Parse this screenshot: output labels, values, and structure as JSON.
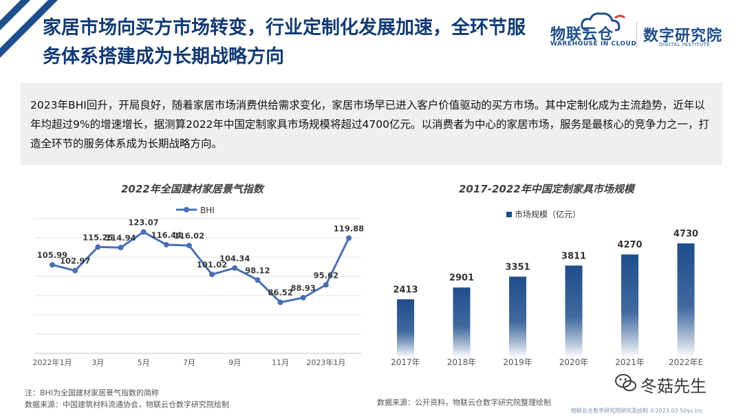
{
  "header": {
    "title_line1": "家居市场向买方市场转变，行业定制化发展加速，全环节服",
    "title_line2": "务体系搭建成为长期战略方向",
    "logo_left": "物联云仓",
    "logo_left_sub": "WAREHOUSE IN CLOUD",
    "logo_right": "数字研究院",
    "logo_right_sub": "DIGITAL INSTITUTE",
    "accent_color": "#1f4e8c"
  },
  "summary": {
    "text": "2023年BHI回升，开局良好，随着家居市场消费供给需求变化，家居市场早已进入客户价值驱动的买方市场。其中定制化成为主流趋势，近年以年均超过9%的增速增长，据测算2022年中国定制家具市场规模将超过4700亿元。以消费者为中心的家居市场，服务是最核心的竞争力之一，打造全环节的服务体系成为长期战略方向。"
  },
  "chart_data": [
    {
      "type": "line",
      "title": "2022年全国建材家居景气指数",
      "series": [
        {
          "name": "BHI",
          "color": "#4a6fb5",
          "values": [
            105.99,
            102.97,
            115.25,
            114.94,
            123.07,
            116.44,
            116.02,
            101.02,
            104.34,
            98.12,
            86.52,
            88.93,
            95.62,
            119.88
          ]
        }
      ],
      "x_tick_labels": [
        "2022年1月",
        "3月",
        "5月",
        "7月",
        "9月",
        "11月",
        "2023年1月"
      ],
      "x_tick_positions": [
        0,
        2,
        4,
        6,
        8,
        10,
        12
      ],
      "ylim": [
        60,
        130
      ],
      "grid": true,
      "legend": "top-left"
    },
    {
      "type": "bar",
      "title": "2017-2022年中国定制家具市场规模",
      "categories": [
        "2017年",
        "2018年",
        "2019年",
        "2020年",
        "2021年",
        "2022年E"
      ],
      "series": [
        {
          "name": "市场规模（亿元）",
          "values": [
            2413,
            2901,
            3351,
            3811,
            4270,
            4730
          ]
        }
      ],
      "bar_color_top": "#1f4e8c",
      "bar_color_bottom": "#ffffff",
      "legend": "top-left"
    }
  ],
  "notes": {
    "bhi_note": "注：BHI为全国建材家居景气指数的简称",
    "bhi_source": "数据来源：中国建筑材料流通协会，物联云仓数字研究院绘制",
    "market_source": "数据来源：公开资料，物联云仓数字研究院整理绘制"
  },
  "watermark": {
    "text": "冬菇先生"
  },
  "footer": {
    "text": "物联云仓数字研究院研究及绘制 ©2023.03 50yc.Inc"
  }
}
